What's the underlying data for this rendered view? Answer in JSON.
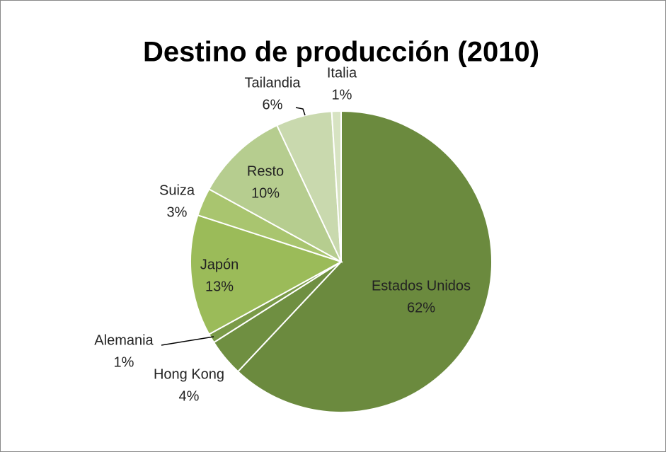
{
  "chart_data": {
    "type": "pie",
    "title": "Destino de producción (2010)",
    "categories": [
      "Estados Unidos",
      "Hong Kong",
      "Alemania",
      "Japón",
      "Suiza",
      "Resto",
      "Tailandia",
      "Italia"
    ],
    "values": [
      62,
      4,
      1,
      13,
      3,
      10,
      6,
      1
    ],
    "value_labels": [
      "62%",
      "4%",
      "1%",
      "13%",
      "3%",
      "10%",
      "6%",
      "1%"
    ],
    "colors": [
      "#6b8a3e",
      "#6f8f41",
      "#7a9a48",
      "#9bbb59",
      "#a9c56f",
      "#b6cd8f",
      "#c9d9ae",
      "#d7e3c2"
    ]
  }
}
